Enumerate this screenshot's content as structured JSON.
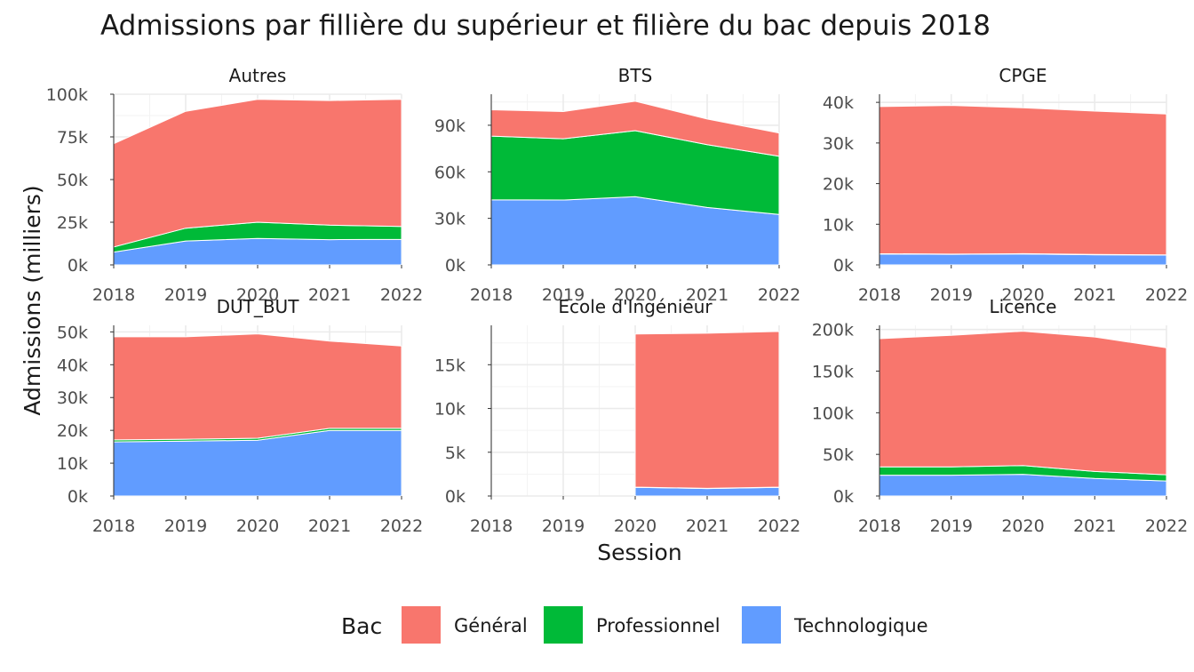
{
  "chart_data": {
    "type": "area",
    "stacked": true,
    "facet_layout": "3 columns x 2 rows",
    "title": "Admissions par fillière du supérieur et filière du bac depuis 2018",
    "xlabel": "Session",
    "ylabel": "Admissions (milliers)",
    "x": [
      2018,
      2019,
      2020,
      2021,
      2022
    ],
    "x_tick_labels": [
      "2018",
      "2019",
      "2020",
      "2021",
      "2022"
    ],
    "grid": true,
    "legend": {
      "title": "Bac",
      "position": "bottom",
      "entries": [
        {
          "name": "Général",
          "color": "#F8766D"
        },
        {
          "name": "Professionnel",
          "color": "#00BA38"
        },
        {
          "name": "Technologique",
          "color": "#619CFF"
        }
      ]
    },
    "facets": [
      {
        "name": "Autres",
        "ylim": [
          0,
          100000
        ],
        "y_ticks": [
          0,
          25000,
          50000,
          75000,
          100000
        ],
        "y_tick_labels": [
          "0k",
          "25k",
          "50k",
          "75k",
          "100k"
        ],
        "series": [
          {
            "name": "Technologique",
            "values": [
              7500,
              14000,
              15500,
              14800,
              15000
            ]
          },
          {
            "name": "Professionnel",
            "values": [
              3000,
              7500,
              9500,
              8500,
              7500
            ]
          },
          {
            "name": "Général",
            "values": [
              60500,
              68500,
              72000,
              73000,
              74500
            ]
          }
        ]
      },
      {
        "name": "BTS",
        "ylim": [
          0,
          110000
        ],
        "y_ticks": [
          0,
          30000,
          60000,
          90000
        ],
        "y_tick_labels": [
          "0k",
          "30k",
          "60k",
          "90k"
        ],
        "series": [
          {
            "name": "Technologique",
            "values": [
              42000,
              41800,
              44000,
              37000,
              32500
            ]
          },
          {
            "name": "Professionnel",
            "values": [
              41000,
              39500,
              42500,
              40500,
              37500
            ]
          },
          {
            "name": "Général",
            "values": [
              17000,
              17500,
              19000,
              16500,
              15000
            ]
          }
        ]
      },
      {
        "name": "CPGE",
        "ylim": [
          0,
          42000
        ],
        "y_ticks": [
          0,
          10000,
          20000,
          30000,
          40000
        ],
        "y_tick_labels": [
          "0k",
          "10k",
          "20k",
          "30k",
          "40k"
        ],
        "series": [
          {
            "name": "Technologique",
            "values": [
              2700,
              2600,
              2700,
              2500,
              2400
            ]
          },
          {
            "name": "Professionnel",
            "values": [
              50,
              50,
              50,
              50,
              50
            ]
          },
          {
            "name": "Général",
            "values": [
              36200,
              36600,
              35900,
              35300,
              34700
            ]
          }
        ]
      },
      {
        "name": "DUT_BUT",
        "ylim": [
          0,
          52000
        ],
        "y_ticks": [
          0,
          10000,
          20000,
          30000,
          40000,
          50000
        ],
        "y_tick_labels": [
          "0k",
          "10k",
          "20k",
          "30k",
          "40k",
          "50k"
        ],
        "series": [
          {
            "name": "Technologique",
            "values": [
              16500,
              16700,
              17000,
              20000,
              20000
            ]
          },
          {
            "name": "Professionnel",
            "values": [
              600,
              600,
              600,
              600,
              600
            ]
          },
          {
            "name": "Général",
            "values": [
              31400,
              31200,
              31800,
              26600,
              25100
            ]
          }
        ]
      },
      {
        "name": "Ecole d'Ingénieur",
        "ylim": [
          0,
          19500
        ],
        "y_ticks": [
          0,
          5000,
          10000,
          15000
        ],
        "y_tick_labels": [
          "0k",
          "5k",
          "10k",
          "15k"
        ],
        "series": [
          {
            "name": "Technologique",
            "values": [
              null,
              null,
              1000,
              850,
              1000
            ]
          },
          {
            "name": "Professionnel",
            "values": [
              null,
              null,
              20,
              20,
              20
            ]
          },
          {
            "name": "Général",
            "values": [
              null,
              null,
              17480,
              17730,
              17780
            ]
          }
        ]
      },
      {
        "name": "Licence",
        "ylim": [
          0,
          205000
        ],
        "y_ticks": [
          0,
          50000,
          100000,
          150000,
          200000
        ],
        "y_tick_labels": [
          "0k",
          "50k",
          "100k",
          "150k",
          "200k"
        ],
        "series": [
          {
            "name": "Technologique",
            "values": [
              25000,
              25000,
              26000,
              21000,
              18000
            ]
          },
          {
            "name": "Professionnel",
            "values": [
              10000,
              10000,
              10500,
              8500,
              7500
            ]
          },
          {
            "name": "Général",
            "values": [
              154000,
              158000,
              161500,
              161500,
              152500
            ]
          }
        ]
      }
    ]
  }
}
